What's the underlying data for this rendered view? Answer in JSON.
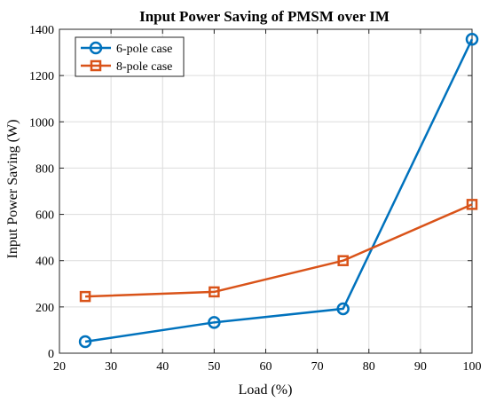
{
  "chart_data": {
    "type": "line",
    "title": "Input Power Saving of PMSM over IM",
    "xlabel": "Load (%)",
    "ylabel": "Input Power Saving (W)",
    "xlim": [
      20,
      100
    ],
    "ylim": [
      0,
      1400
    ],
    "xticks": [
      20,
      30,
      40,
      50,
      60,
      70,
      80,
      90,
      100
    ],
    "yticks": [
      0,
      200,
      400,
      600,
      800,
      1000,
      1200,
      1400
    ],
    "grid": true,
    "legend_position": "top-left",
    "x": [
      25,
      50,
      75,
      100
    ],
    "series": [
      {
        "name": "6-pole case",
        "values": [
          50,
          133,
          192,
          1357
        ],
        "color": "#0072BD",
        "marker": "circle"
      },
      {
        "name": "8-pole case",
        "values": [
          245,
          265,
          400,
          643
        ],
        "color": "#D95319",
        "marker": "square"
      }
    ]
  }
}
